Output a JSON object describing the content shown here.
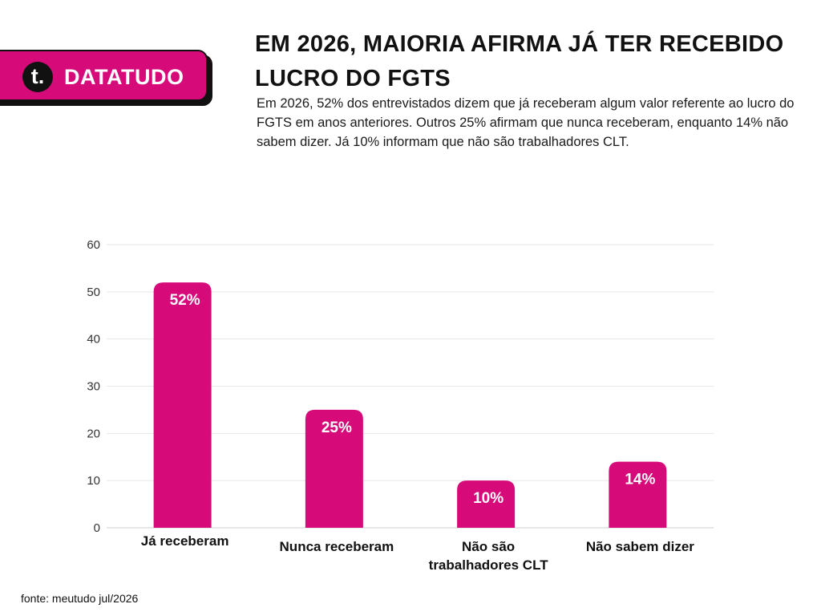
{
  "brand": {
    "logo_letter": "t.",
    "name": "DATATUDO",
    "accent_color": "#d70a7a"
  },
  "title": "EM 2026, MAIORIA AFIRMA JÁ TER RECEBIDO LUCRO DO FGTS",
  "subtitle": "Em 2026, 52% dos entrevistados dizem que já receberam algum valor referente ao lucro do FGTS em anos anteriores. Outros 25% afirmam que nunca receberam, enquanto 14% não sabem dizer. Já 10% informam que não são trabalhadores CLT.",
  "source": "fonte: meutudo jul/2026",
  "chart_data": {
    "type": "bar",
    "categories": [
      "Já receberam",
      "Nunca receberam",
      "Não são trabalhadores CLT",
      "Não sabem dizer"
    ],
    "category_lines": [
      [
        "Já receberam"
      ],
      [
        "Nunca receberam"
      ],
      [
        "Não são",
        "trabalhadores CLT"
      ],
      [
        "Não sabem dizer"
      ]
    ],
    "values": [
      52,
      25,
      10,
      14
    ],
    "data_labels": [
      "52%",
      "25%",
      "10%",
      "14%"
    ],
    "ylim": [
      0,
      60
    ],
    "yticks": [
      0,
      10,
      20,
      30,
      40,
      50,
      60
    ],
    "grid": true,
    "bar_color": "#d70a7a",
    "grid_color": "#e6e6e6"
  }
}
